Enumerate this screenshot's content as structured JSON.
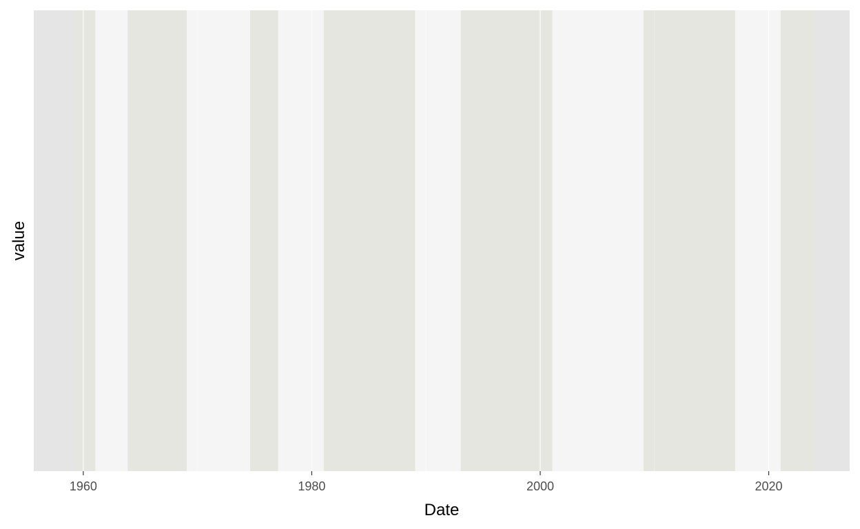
{
  "chart_data": {
    "type": "area",
    "title": "",
    "xlabel": "Date",
    "ylabel": "value",
    "x_axis_type": "date",
    "xlim": [
      "1955-09-01",
      "2027-02-01"
    ],
    "x_ticks": [
      {
        "value": "1960-01-01",
        "label": "1960"
      },
      {
        "value": "1980-01-01",
        "label": "1980"
      },
      {
        "value": "2000-01-01",
        "label": "2000"
      },
      {
        "value": "2020-01-01",
        "label": "2020"
      }
    ],
    "y_ticks": [],
    "grid": true,
    "legend": "none",
    "colors": {
      "panel_background": "#e5e5e5",
      "shade_dark": "#e6e6e0",
      "shade_light": "#f5f5f5",
      "gridline": "#ffffff",
      "tick_label": "#4d4d4d",
      "axis_title": "#000000"
    },
    "shaded_periods": [
      {
        "start": "1959-04-01",
        "end": "1961-01-20",
        "shade": "dark"
      },
      {
        "start": "1961-01-20",
        "end": "1963-11-22",
        "shade": "light"
      },
      {
        "start": "1963-11-22",
        "end": "1969-01-20",
        "shade": "dark"
      },
      {
        "start": "1969-01-20",
        "end": "1974-08-09",
        "shade": "light"
      },
      {
        "start": "1974-08-09",
        "end": "1977-01-20",
        "shade": "dark"
      },
      {
        "start": "1977-01-20",
        "end": "1981-01-20",
        "shade": "light"
      },
      {
        "start": "1981-01-20",
        "end": "1989-01-20",
        "shade": "dark"
      },
      {
        "start": "1989-01-20",
        "end": "1993-01-20",
        "shade": "light"
      },
      {
        "start": "1993-01-20",
        "end": "2001-01-20",
        "shade": "dark"
      },
      {
        "start": "2001-01-20",
        "end": "2009-01-20",
        "shade": "light"
      },
      {
        "start": "2009-01-20",
        "end": "2017-01-20",
        "shade": "dark"
      },
      {
        "start": "2017-01-20",
        "end": "2021-01-20",
        "shade": "light"
      },
      {
        "start": "2021-01-20",
        "end": "2024-01-01",
        "shade": "dark"
      }
    ]
  }
}
